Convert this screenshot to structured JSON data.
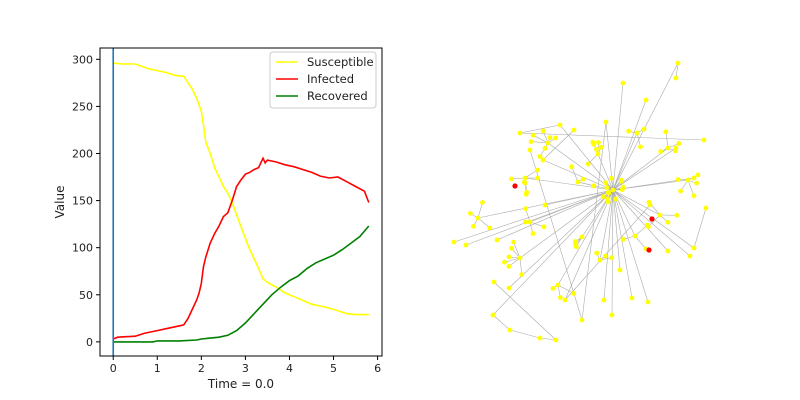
{
  "chart_data": [
    {
      "type": "line",
      "xlabel": "Time = 0.0",
      "ylabel": "Value",
      "xlim": [
        -0.3,
        6.1
      ],
      "ylim": [
        -15,
        312
      ],
      "xticks": [
        0,
        1,
        2,
        3,
        4,
        5,
        6
      ],
      "yticks": [
        0,
        50,
        100,
        150,
        200,
        250,
        300
      ],
      "grid": false,
      "legend": "top-right",
      "time_marker": 0,
      "series": [
        {
          "name": "Susceptible",
          "color": "#ffff00",
          "x": [
            0,
            0.2,
            0.5,
            0.8,
            1.0,
            1.2,
            1.4,
            1.6,
            1.7,
            1.8,
            1.9,
            2.0,
            2.05,
            2.1,
            2.2,
            2.3,
            2.4,
            2.5,
            2.6,
            2.7,
            2.8,
            2.9,
            3.0,
            3.1,
            3.2,
            3.3,
            3.4,
            3.5,
            3.7,
            3.9,
            4.1,
            4.3,
            4.5,
            4.7,
            4.9,
            5.1,
            5.3,
            5.5,
            5.8
          ],
          "y": [
            296,
            295,
            295,
            290,
            288,
            286,
            283,
            282,
            275,
            268,
            258,
            245,
            230,
            212,
            200,
            185,
            175,
            165,
            158,
            148,
            135,
            122,
            110,
            98,
            88,
            78,
            67,
            63,
            58,
            52,
            48,
            44,
            40,
            38,
            36,
            33,
            30,
            29,
            29
          ]
        },
        {
          "name": "Infected",
          "color": "#ff0000",
          "x": [
            0,
            0.1,
            0.5,
            0.7,
            0.9,
            1.0,
            1.2,
            1.4,
            1.6,
            1.7,
            1.8,
            1.9,
            1.95,
            2.0,
            2.05,
            2.1,
            2.2,
            2.3,
            2.4,
            2.5,
            2.6,
            2.7,
            2.8,
            2.9,
            3.0,
            3.1,
            3.2,
            3.3,
            3.4,
            3.45,
            3.5,
            3.7,
            3.9,
            4.1,
            4.3,
            4.5,
            4.7,
            4.9,
            5.1,
            5.3,
            5.5,
            5.7,
            5.8
          ],
          "y": [
            3,
            5,
            6,
            9,
            11,
            12,
            14,
            16,
            18,
            25,
            35,
            45,
            52,
            62,
            80,
            90,
            105,
            115,
            123,
            133,
            137,
            150,
            165,
            172,
            178,
            180,
            183,
            185,
            195,
            190,
            193,
            191,
            188,
            186,
            183,
            180,
            176,
            174,
            175,
            170,
            165,
            160,
            148
          ]
        },
        {
          "name": "Recovered",
          "color": "#008000",
          "x": [
            0,
            0.5,
            0.9,
            1.0,
            1.5,
            1.9,
            2.0,
            2.2,
            2.4,
            2.6,
            2.8,
            3.0,
            3.2,
            3.4,
            3.6,
            3.8,
            4.0,
            4.2,
            4.4,
            4.6,
            4.8,
            5.0,
            5.2,
            5.4,
            5.6,
            5.8
          ],
          "y": [
            0,
            0,
            0,
            1,
            1,
            2,
            3,
            4,
            5,
            7,
            12,
            20,
            30,
            40,
            50,
            58,
            65,
            70,
            78,
            84,
            88,
            92,
            98,
            105,
            112,
            123
          ]
        }
      ]
    },
    {
      "type": "network",
      "node_color": "#ffff00",
      "infected_color": "#ff0000",
      "edge_color": "#aaaaaa"
    }
  ]
}
